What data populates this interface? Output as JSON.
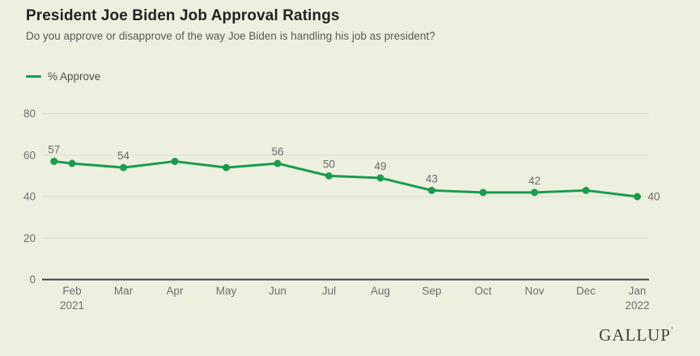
{
  "header": {
    "title": "President Joe Biden Job Approval Ratings",
    "subtitle": "Do you approve or disapprove of the way Joe Biden is handling his job as president?"
  },
  "legend": {
    "label": "% Approve"
  },
  "footer": {
    "logo": "GALLUP",
    "trademark": "’"
  },
  "colors": {
    "background": "#edf0df",
    "line": "#1a9b4e",
    "grid": "#dcddcd",
    "axis": "#404040",
    "title": "#222222",
    "subtitle": "#595959",
    "tick_label": "#6e6e6e",
    "data_label": "#6a6a6a",
    "logo": "#3e4339"
  },
  "chart_data": {
    "type": "line",
    "title": "President Joe Biden Job Approval Ratings",
    "subtitle": "Do you approve or disapprove of the way Joe Biden is handling his job as president?",
    "ylabel": "% Approve",
    "ylim": [
      0,
      80
    ],
    "yticks": [
      0,
      20,
      40,
      60,
      80
    ],
    "grid": true,
    "legend_position": "top-left",
    "xticks": [
      {
        "t": 0,
        "label": "Feb",
        "sub": "2021"
      },
      {
        "t": 1,
        "label": "Mar"
      },
      {
        "t": 2,
        "label": "Apr"
      },
      {
        "t": 3,
        "label": "May"
      },
      {
        "t": 4,
        "label": "Jun"
      },
      {
        "t": 5,
        "label": "Jul"
      },
      {
        "t": 6,
        "label": "Aug"
      },
      {
        "t": 7,
        "label": "Sep"
      },
      {
        "t": 8,
        "label": "Oct"
      },
      {
        "t": 9,
        "label": "Nov"
      },
      {
        "t": 10,
        "label": "Dec"
      },
      {
        "t": 11,
        "label": "Jan",
        "sub": "2022"
      }
    ],
    "series": [
      {
        "name": "% Approve",
        "points": [
          {
            "t": -0.35,
            "value": 57,
            "label": "57"
          },
          {
            "t": 0,
            "value": 56
          },
          {
            "t": 1,
            "value": 54,
            "label": "54"
          },
          {
            "t": 2,
            "value": 57
          },
          {
            "t": 3,
            "value": 54
          },
          {
            "t": 4,
            "value": 56,
            "label": "56"
          },
          {
            "t": 5,
            "value": 50,
            "label": "50"
          },
          {
            "t": 6,
            "value": 49,
            "label": "49"
          },
          {
            "t": 7,
            "value": 43,
            "label": "43"
          },
          {
            "t": 8,
            "value": 42
          },
          {
            "t": 9,
            "value": 42,
            "label": "42"
          },
          {
            "t": 10,
            "value": 43
          },
          {
            "t": 11,
            "value": 40,
            "label": "40",
            "label_pos": "right"
          }
        ]
      }
    ]
  }
}
